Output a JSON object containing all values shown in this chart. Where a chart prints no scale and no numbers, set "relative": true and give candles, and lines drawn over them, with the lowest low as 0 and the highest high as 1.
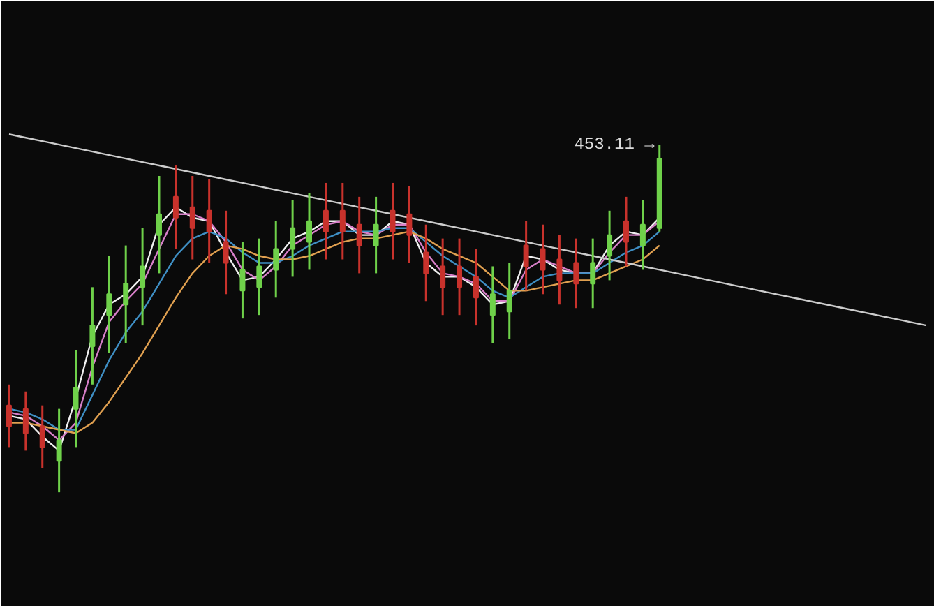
{
  "chart_data": {
    "type": "candlestick",
    "relative": true,
    "categories": [
      null,
      null,
      null,
      null,
      null,
      null,
      null,
      null,
      null,
      null,
      null,
      null,
      null,
      null,
      null,
      null,
      null,
      null,
      null,
      null,
      null,
      null,
      null,
      null,
      null,
      null,
      null,
      null,
      null,
      null,
      null,
      null,
      null,
      null,
      null,
      null,
      null,
      null,
      null,
      null,
      null,
      null,
      null,
      null,
      null,
      null,
      null,
      null,
      null,
      null,
      null,
      null,
      null,
      null,
      null,
      null
    ],
    "ohlc": [
      [
        0.25,
        0.31,
        0.13,
        0.19
      ],
      [
        0.24,
        0.29,
        0.12,
        0.17
      ],
      [
        0.19,
        0.25,
        0.07,
        0.13
      ],
      [
        0.09,
        0.24,
        0,
        0.15
      ],
      [
        0.24,
        0.41,
        0.13,
        0.3
      ],
      [
        0.42,
        0.59,
        0.31,
        0.48
      ],
      [
        0.51,
        0.68,
        0.4,
        0.57
      ],
      [
        0.54,
        0.71,
        0.43,
        0.6
      ],
      [
        0.59,
        0.76,
        0.48,
        0.65
      ],
      [
        0.74,
        0.91,
        0.63,
        0.8
      ],
      [
        0.85,
        0.94,
        0.7,
        0.79
      ],
      [
        0.82,
        0.91,
        0.67,
        0.76
      ],
      [
        0.81,
        0.9,
        0.66,
        0.75
      ],
      [
        0.72,
        0.81,
        0.57,
        0.66
      ],
      [
        0.58,
        0.72,
        0.5,
        0.64
      ],
      [
        0.59,
        0.73,
        0.51,
        0.65
      ],
      [
        0.64,
        0.78,
        0.56,
        0.7
      ],
      [
        0.7,
        0.84,
        0.62,
        0.76
      ],
      [
        0.72,
        0.86,
        0.64,
        0.78
      ],
      [
        0.81,
        0.89,
        0.67,
        0.75
      ],
      [
        0.81,
        0.89,
        0.67,
        0.75
      ],
      [
        0.77,
        0.85,
        0.63,
        0.71
      ],
      [
        0.71,
        0.85,
        0.63,
        0.77
      ],
      [
        0.81,
        0.89,
        0.67,
        0.75
      ],
      [
        0.8,
        0.88,
        0.66,
        0.74
      ],
      [
        0.69,
        0.77,
        0.55,
        0.63
      ],
      [
        0.65,
        0.73,
        0.51,
        0.59
      ],
      [
        0.65,
        0.73,
        0.51,
        0.59
      ],
      [
        0.62,
        0.7,
        0.48,
        0.56
      ],
      [
        0.51,
        0.65,
        0.43,
        0.57
      ],
      [
        0.52,
        0.66,
        0.44,
        0.58
      ],
      [
        0.71,
        0.78,
        0.58,
        0.65
      ],
      [
        0.7,
        0.77,
        0.57,
        0.64
      ],
      [
        0.67,
        0.74,
        0.54,
        0.61
      ],
      [
        0.66,
        0.73,
        0.53,
        0.6
      ],
      [
        0.6,
        0.73,
        0.53,
        0.66
      ],
      [
        0.68,
        0.81,
        0.61,
        0.74
      ],
      [
        0.78,
        0.85,
        0.65,
        0.72
      ],
      [
        0.71,
        0.84,
        0.64,
        0.77
      ],
      [
        0.76,
        1,
        0.75,
        0.96
      ],
      null,
      null,
      null,
      null,
      null,
      null,
      null,
      null,
      null,
      null,
      null,
      null,
      null,
      null,
      null,
      null
    ],
    "series": [
      {
        "type": "line",
        "color": "#f0f0f0",
        "values": [
          0.22,
          0.21,
          0.16,
          0.12,
          0.27,
          0.45,
          0.54,
          0.57,
          0.62,
          0.77,
          0.82,
          0.79,
          0.78,
          0.69,
          0.61,
          0.62,
          0.67,
          0.73,
          0.75,
          0.78,
          0.78,
          0.74,
          0.74,
          0.78,
          0.77,
          0.66,
          0.62,
          0.62,
          0.59,
          0.54,
          0.55,
          0.68,
          0.67,
          0.64,
          0.63,
          0.63,
          0.71,
          0.75,
          0.74,
          0.79,
          null,
          null,
          null,
          null,
          null,
          null,
          null,
          null,
          null,
          null,
          null,
          null,
          null,
          null,
          null,
          null
        ]
      },
      {
        "type": "line",
        "color": "#d77fc8",
        "values": [
          0.23,
          0.22,
          0.19,
          0.15,
          0.2,
          0.36,
          0.49,
          0.55,
          0.6,
          0.7,
          0.8,
          0.8,
          0.78,
          0.72,
          0.64,
          0.61,
          0.65,
          0.71,
          0.74,
          0.77,
          0.78,
          0.75,
          0.74,
          0.77,
          0.77,
          0.69,
          0.63,
          0.62,
          0.6,
          0.55,
          0.55,
          0.64,
          0.67,
          0.65,
          0.63,
          0.63,
          0.69,
          0.74,
          0.74,
          0.78,
          null,
          null,
          null,
          null,
          null,
          null,
          null,
          null,
          null,
          null,
          null,
          null,
          null,
          null,
          null,
          null
        ]
      },
      {
        "type": "line",
        "color": "#3f8fc4",
        "values": [
          0.24,
          0.23,
          0.21,
          0.18,
          0.18,
          0.28,
          0.38,
          0.46,
          0.52,
          0.6,
          0.68,
          0.73,
          0.75,
          0.73,
          0.69,
          0.66,
          0.66,
          0.68,
          0.71,
          0.73,
          0.75,
          0.75,
          0.75,
          0.76,
          0.76,
          0.72,
          0.68,
          0.65,
          0.62,
          0.58,
          0.56,
          0.59,
          0.62,
          0.63,
          0.63,
          0.63,
          0.66,
          0.69,
          0.71,
          0.75,
          null,
          null,
          null,
          null,
          null,
          null,
          null,
          null,
          null,
          null,
          null,
          null,
          null,
          null,
          null,
          null
        ]
      },
      {
        "type": "line",
        "color": "#e0a050",
        "values": [
          0.2,
          0.2,
          0.19,
          0.18,
          0.17,
          0.2,
          0.26,
          0.33,
          0.4,
          0.48,
          0.56,
          0.63,
          0.68,
          0.71,
          0.7,
          0.68,
          0.67,
          0.67,
          0.68,
          0.7,
          0.72,
          0.73,
          0.73,
          0.74,
          0.75,
          0.73,
          0.7,
          0.68,
          0.66,
          0.62,
          0.58,
          0.58,
          0.59,
          0.6,
          0.61,
          0.61,
          0.63,
          0.65,
          0.67,
          0.71,
          null,
          null,
          null,
          null,
          null,
          null,
          null,
          null,
          null,
          null,
          null,
          null,
          null,
          null,
          null,
          null
        ]
      },
      {
        "type": "line",
        "color": "#cccccc",
        "values": [
          1.03,
          1.02,
          1.01,
          1.0,
          0.99,
          0.98,
          0.97,
          0.96,
          0.95,
          0.94,
          0.93,
          0.92,
          0.91,
          0.9,
          0.89,
          0.88,
          0.87,
          0.86,
          0.85,
          0.84,
          0.83,
          0.82,
          0.81,
          0.8,
          0.79,
          0.78,
          0.77,
          0.76,
          0.75,
          0.74,
          0.73,
          0.72,
          0.71,
          0.7,
          0.69,
          0.68,
          0.67,
          0.66,
          0.65,
          0.64,
          0.63,
          0.62,
          0.61,
          0.6,
          0.59,
          0.58,
          0.57,
          0.56,
          0.55,
          0.54,
          0.53,
          0.52,
          0.51,
          0.5,
          0.49,
          0.48
        ]
      }
    ],
    "annotations": [
      "453.11 →"
    ]
  }
}
